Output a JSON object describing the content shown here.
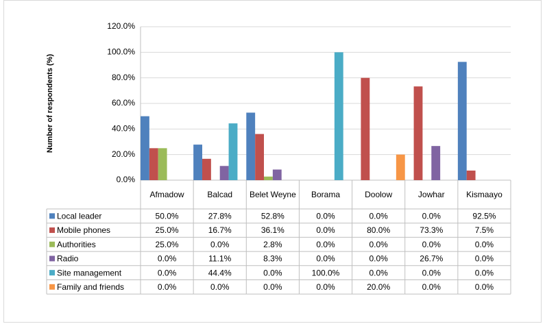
{
  "chart_data": {
    "type": "bar",
    "y_label": "Number of respondents (%)",
    "categories": [
      "Afmadow",
      "Balcad",
      "Belet Weyne",
      "Borama",
      "Doolow",
      "Jowhar",
      "Kismaayo"
    ],
    "series": [
      {
        "name": "Local leader",
        "color": "#4f81bd",
        "values": [
          50.0,
          27.8,
          52.8,
          0.0,
          0.0,
          0.0,
          92.5
        ],
        "value_labels": [
          "50.0%",
          "27.8%",
          "52.8%",
          "0.0%",
          "0.0%",
          "0.0%",
          "92.5%"
        ]
      },
      {
        "name": "Mobile phones",
        "color": "#c0504d",
        "values": [
          25.0,
          16.7,
          36.1,
          0.0,
          80.0,
          73.3,
          7.5
        ],
        "value_labels": [
          "25.0%",
          "16.7%",
          "36.1%",
          "0.0%",
          "80.0%",
          "73.3%",
          "7.5%"
        ]
      },
      {
        "name": "Authorities",
        "color": "#9bbb59",
        "values": [
          25.0,
          0.0,
          2.8,
          0.0,
          0.0,
          0.0,
          0.0
        ],
        "value_labels": [
          "25.0%",
          "0.0%",
          "2.8%",
          "0.0%",
          "0.0%",
          "0.0%",
          "0.0%"
        ]
      },
      {
        "name": "Radio",
        "color": "#8064a2",
        "values": [
          0.0,
          11.1,
          8.3,
          0.0,
          0.0,
          26.7,
          0.0
        ],
        "value_labels": [
          "0.0%",
          "11.1%",
          "8.3%",
          "0.0%",
          "0.0%",
          "26.7%",
          "0.0%"
        ]
      },
      {
        "name": "Site management",
        "color": "#4bacc6",
        "values": [
          0.0,
          44.4,
          0.0,
          100.0,
          0.0,
          0.0,
          0.0
        ],
        "value_labels": [
          "0.0%",
          "44.4%",
          "0.0%",
          "100.0%",
          "0.0%",
          "0.0%",
          "0.0%"
        ]
      },
      {
        "name": "Family and friends",
        "color": "#f79646",
        "values": [
          0.0,
          0.0,
          0.0,
          0.0,
          20.0,
          0.0,
          0.0
        ],
        "value_labels": [
          "0.0%",
          "0.0%",
          "0.0%",
          "0.0%",
          "20.0%",
          "0.0%",
          "0.0%"
        ]
      }
    ],
    "ylim": [
      0,
      120
    ],
    "yticks": [
      {
        "value": 0,
        "label": "0.0%"
      },
      {
        "value": 20,
        "label": "20.0%"
      },
      {
        "value": 40,
        "label": "40.0%"
      },
      {
        "value": 60,
        "label": "60.0%"
      },
      {
        "value": 80,
        "label": "80.0%"
      },
      {
        "value": 100,
        "label": "100.0%"
      },
      {
        "value": 120,
        "label": "120.0%"
      }
    ],
    "grid": true
  }
}
